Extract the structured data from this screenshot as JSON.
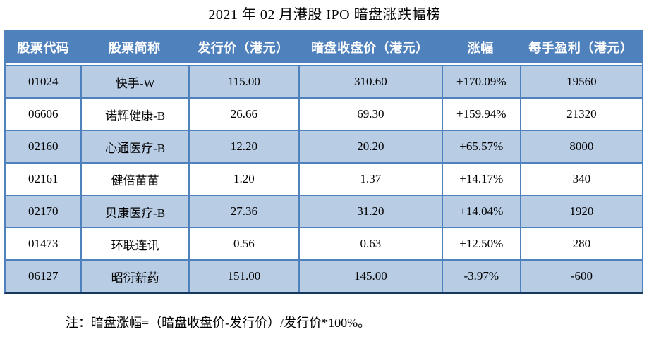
{
  "title": "2021 年 02 月港股 IPO 暗盘涨跌幅榜",
  "table": {
    "headers": [
      "股票代码",
      "股票简称",
      "发行价（港元）",
      "暗盘收盘价（港元）",
      "涨幅",
      "每手盈利（港元）"
    ],
    "rows": [
      [
        "01024",
        "快手-W",
        "115.00",
        "310.60",
        "+170.09%",
        "19560"
      ],
      [
        "06606",
        "诺辉健康-B",
        "26.66",
        "69.30",
        "+159.94%",
        "21320"
      ],
      [
        "02160",
        "心通医疗-B",
        "12.20",
        "20.20",
        "+65.57%",
        "8000"
      ],
      [
        "02161",
        "健倍苗苗",
        "1.20",
        "1.37",
        "+14.17%",
        "340"
      ],
      [
        "02170",
        "贝康医疗-B",
        "27.36",
        "31.20",
        "+14.04%",
        "1920"
      ],
      [
        "01473",
        "环联连讯",
        "0.56",
        "0.63",
        "+12.50%",
        "280"
      ],
      [
        "06127",
        "昭衍新药",
        "151.00",
        "145.00",
        "-3.97%",
        "-600"
      ]
    ]
  },
  "note": "注：暗盘涨幅=（暗盘收盘价-发行价）/发行价*100%。",
  "colors": {
    "header_bg": "#4f81bd",
    "row_alt_bg": "#b8cce4",
    "border": "#4f81bd",
    "outer_bottom_border": "#17375e",
    "header_text": "#ffffff",
    "body_text": "#000000"
  }
}
